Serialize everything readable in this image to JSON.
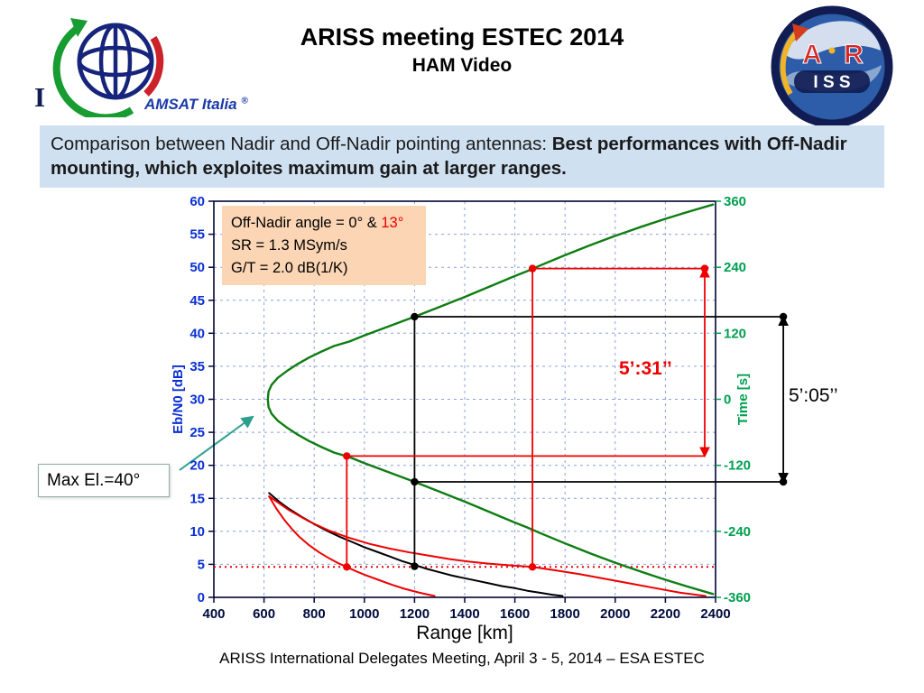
{
  "header": {
    "title": "ARISS meeting ESTEC 2014",
    "subtitle": "HAM Video",
    "amsat_logo": {
      "letter_i": "I",
      "name": "AMSAT Italia",
      "registered": "®"
    },
    "ariss_logo": {
      "letter_a": "A",
      "letter_r": "R",
      "iss": "I S S"
    }
  },
  "banner": {
    "text_normal": "Comparison between Nadir and Off-Nadir pointing antennas: ",
    "text_bold": "Best performances with Off-Nadir mounting, which exploites maximum gain at larger ranges."
  },
  "info_box": {
    "line1_prefix": "Off-Nadir angle = 0° & ",
    "line1_value": "13°",
    "line2": "SR = 1.3 MSym/s",
    "line3": "G/T = 2.0 dB(1/K)"
  },
  "callouts": {
    "max_elevation": "Max El.=40°",
    "duration_offnadir": "5’:31’’",
    "duration_nadir": "5’:05’’"
  },
  "footer": {
    "caption": "ARISS International Delegates Meeting, April 3 - 5, 2014 – ESA ESTEC"
  },
  "chart_data": {
    "type": "line",
    "xlabel": "Range [km]",
    "ylabel_left": "Eb/N0 [dB]",
    "ylabel_right": "Time [s]",
    "xlim": [
      400,
      2400
    ],
    "ylim_left": [
      0,
      60
    ],
    "ylim_right": [
      -360,
      360
    ],
    "xticks": [
      400,
      600,
      800,
      1000,
      1200,
      1400,
      1600,
      1800,
      2000,
      2200,
      2400
    ],
    "yticks_left": [
      0,
      5,
      10,
      15,
      20,
      25,
      30,
      35,
      40,
      45,
      50,
      55,
      60
    ],
    "yticks_right": [
      -360,
      -240,
      -120,
      0,
      120,
      240,
      360
    ],
    "grid": true,
    "legend": "none",
    "colors": {
      "green": "#0e7d12",
      "black": "#000000",
      "red": "#ee0000",
      "frame": "#000433",
      "blue_axis": "#0a2fd4",
      "green_axis": "#00a050",
      "grid": "#8ea0dd"
    },
    "threshold": {
      "value": 4.6,
      "color": "red",
      "style": "dotted"
    },
    "series": [
      {
        "name": "time-vs-range",
        "axis": "right",
        "color": "green",
        "width": 2.4,
        "points": [
          [
            2390,
            354
          ],
          [
            2300,
            342
          ],
          [
            2200,
            328
          ],
          [
            2100,
            313
          ],
          [
            2000,
            297
          ],
          [
            1900,
            280
          ],
          [
            1800,
            262
          ],
          [
            1700,
            243
          ],
          [
            1650,
            233
          ],
          [
            1600,
            224
          ],
          [
            1500,
            205
          ],
          [
            1400,
            186
          ],
          [
            1300,
            168
          ],
          [
            1200,
            150
          ],
          [
            1100,
            133
          ],
          [
            1000,
            116
          ],
          [
            940,
            105
          ],
          [
            880,
            97
          ],
          [
            830,
            87
          ],
          [
            780,
            76
          ],
          [
            730,
            63
          ],
          [
            690,
            51
          ],
          [
            655,
            39
          ],
          [
            630,
            26
          ],
          [
            618,
            14
          ],
          [
            615,
            0
          ],
          [
            618,
            -14
          ],
          [
            630,
            -26
          ],
          [
            655,
            -39
          ],
          [
            690,
            -51
          ],
          [
            730,
            -63
          ],
          [
            780,
            -76
          ],
          [
            830,
            -87
          ],
          [
            880,
            -97
          ],
          [
            940,
            -105
          ],
          [
            1000,
            -116
          ],
          [
            1100,
            -133
          ],
          [
            1200,
            -150
          ],
          [
            1300,
            -168
          ],
          [
            1400,
            -186
          ],
          [
            1500,
            -205
          ],
          [
            1600,
            -224
          ],
          [
            1650,
            -233
          ],
          [
            1700,
            -243
          ],
          [
            1800,
            -262
          ],
          [
            1900,
            -280
          ],
          [
            2000,
            -297
          ],
          [
            2100,
            -313
          ],
          [
            2200,
            -328
          ],
          [
            2300,
            -342
          ],
          [
            2390,
            -354
          ]
        ]
      },
      {
        "name": "ebn0-nadir-0deg",
        "axis": "left",
        "color": "black",
        "width": 2,
        "points": [
          [
            620,
            15.8
          ],
          [
            660,
            14.5
          ],
          [
            700,
            13.4
          ],
          [
            750,
            12.2
          ],
          [
            800,
            11.1
          ],
          [
            850,
            10.1
          ],
          [
            900,
            9.2
          ],
          [
            950,
            8.4
          ],
          [
            1000,
            7.6
          ],
          [
            1050,
            6.9
          ],
          [
            1100,
            6.2
          ],
          [
            1150,
            5.5
          ],
          [
            1200,
            4.9
          ],
          [
            1250,
            4.3
          ],
          [
            1300,
            3.8
          ],
          [
            1350,
            3.3
          ],
          [
            1400,
            2.9
          ],
          [
            1450,
            2.5
          ],
          [
            1500,
            2.1
          ],
          [
            1550,
            1.7
          ],
          [
            1600,
            1.4
          ],
          [
            1650,
            1.0
          ],
          [
            1700,
            0.7
          ],
          [
            1750,
            0.4
          ],
          [
            1790,
            0.2
          ]
        ]
      },
      {
        "name": "ebn0-offnadir-13deg-low",
        "axis": "left",
        "color": "red",
        "width": 2,
        "points": [
          [
            620,
            15.3
          ],
          [
            650,
            13.4
          ],
          [
            680,
            11.8
          ],
          [
            710,
            10.4
          ],
          [
            740,
            9.2
          ],
          [
            780,
            7.9
          ],
          [
            820,
            6.8
          ],
          [
            860,
            5.9
          ],
          [
            900,
            5.1
          ],
          [
            930,
            4.6
          ],
          [
            970,
            3.9
          ],
          [
            1010,
            3.3
          ],
          [
            1060,
            2.6
          ],
          [
            1110,
            1.9
          ],
          [
            1160,
            1.3
          ],
          [
            1220,
            0.7
          ],
          [
            1280,
            0.2
          ]
        ]
      },
      {
        "name": "ebn0-offnadir-13deg-high",
        "axis": "left",
        "color": "red",
        "width": 2,
        "points": [
          [
            620,
            15.3
          ],
          [
            700,
            13.2
          ],
          [
            780,
            11.5
          ],
          [
            860,
            10.1
          ],
          [
            940,
            9.0
          ],
          [
            1020,
            8.1
          ],
          [
            1100,
            7.4
          ],
          [
            1180,
            6.8
          ],
          [
            1260,
            6.3
          ],
          [
            1340,
            5.8
          ],
          [
            1420,
            5.4
          ],
          [
            1500,
            5.1
          ],
          [
            1580,
            4.85
          ],
          [
            1670,
            4.6
          ],
          [
            1760,
            4.1
          ],
          [
            1860,
            3.5
          ],
          [
            1960,
            2.8
          ],
          [
            2060,
            2.1
          ],
          [
            2160,
            1.4
          ],
          [
            2260,
            0.7
          ],
          [
            2360,
            0.2
          ]
        ]
      }
    ],
    "annotations": {
      "lines": [
        {
          "name": "nadir-vline",
          "color": "black",
          "x1": 1200,
          "y1": 4.7,
          "x2": 1200,
          "y2": 42.5
        },
        {
          "name": "nadir-hline-top",
          "color": "black",
          "x1": 1200,
          "y1": 42.5,
          "x2": 2670,
          "y2": 42.5
        },
        {
          "name": "nadir-hline-bottom",
          "color": "black",
          "x1": 1200,
          "y1": 17.5,
          "x2": 2670,
          "y2": 17.5
        },
        {
          "name": "nadir-duration-arrow",
          "color": "black",
          "x1": 2670,
          "y1": 42.5,
          "x2": 2670,
          "y2": 17.5,
          "arrows": true
        },
        {
          "name": "offnadir-vline-left",
          "color": "red",
          "x1": 930,
          "y1": 4.6,
          "x2": 930,
          "y2": 21.4
        },
        {
          "name": "offnadir-hline-bottom",
          "color": "red",
          "x1": 930,
          "y1": 21.4,
          "x2": 2357,
          "y2": 21.4
        },
        {
          "name": "offnadir-vline-right",
          "color": "red",
          "x1": 1670,
          "y1": 4.6,
          "x2": 1670,
          "y2": 49.8
        },
        {
          "name": "offnadir-hline-top",
          "color": "red",
          "x1": 1670,
          "y1": 49.8,
          "x2": 2357,
          "y2": 49.8
        },
        {
          "name": "offnadir-duration-arrow",
          "color": "red",
          "x1": 2357,
          "y1": 49.8,
          "x2": 2357,
          "y2": 21.4,
          "arrows": true
        }
      ],
      "dots": [
        {
          "color": "black",
          "x": 1200,
          "y": 42.5
        },
        {
          "color": "black",
          "x": 1200,
          "y": 17.5
        },
        {
          "color": "black",
          "x": 1200,
          "y": 4.7
        },
        {
          "color": "black",
          "x": 2670,
          "y": 42.5
        },
        {
          "color": "black",
          "x": 2670,
          "y": 17.5
        },
        {
          "color": "red",
          "x": 930,
          "y": 21.4
        },
        {
          "color": "red",
          "x": 930,
          "y": 4.6
        },
        {
          "color": "red",
          "x": 1670,
          "y": 49.8
        },
        {
          "color": "red",
          "x": 1670,
          "y": 4.6
        },
        {
          "color": "red",
          "x": 2357,
          "y": 49.8
        }
      ]
    }
  }
}
